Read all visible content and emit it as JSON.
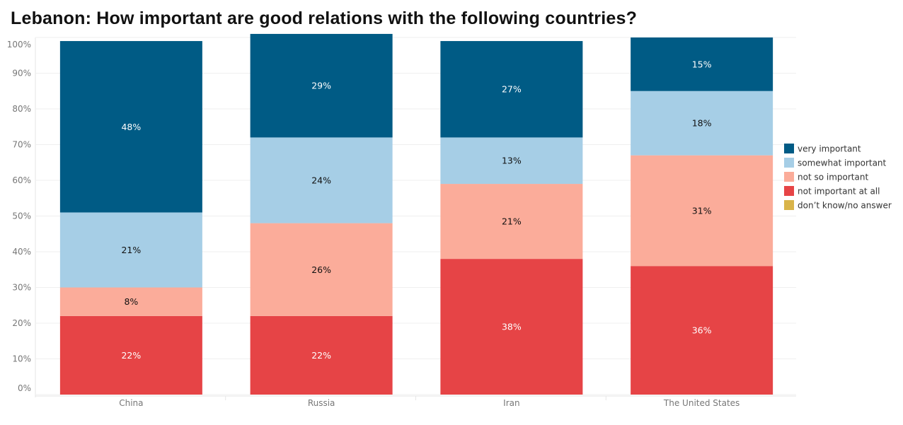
{
  "chart_data": {
    "type": "bar",
    "stacked": true,
    "title": "Lebanon: How important are good relations with the following countries?",
    "xlabel": "",
    "ylabel": "",
    "ylim": [
      0,
      100
    ],
    "y_ticks": [
      "0%",
      "10%",
      "20%",
      "30%",
      "40%",
      "50%",
      "60%",
      "70%",
      "80%",
      "90%",
      "100%"
    ],
    "grid": true,
    "legend_position": "right",
    "categories": [
      "China",
      "Russia",
      "Iran",
      "The United States"
    ],
    "series": [
      {
        "name": "not important at all",
        "color": "#E64446",
        "label_color": "#ffffff",
        "values": [
          22,
          22,
          38,
          36
        ],
        "labels": [
          "22%",
          "22%",
          "38%",
          "36%"
        ]
      },
      {
        "name": "not so important",
        "color": "#FBAC9A",
        "label_color": "#111111",
        "values": [
          8,
          26,
          21,
          31
        ],
        "labels": [
          "8%",
          "26%",
          "21%",
          "31%"
        ]
      },
      {
        "name": "somewhat important",
        "color": "#A6CEE6",
        "label_color": "#111111",
        "values": [
          21,
          24,
          13,
          18
        ],
        "labels": [
          "21%",
          "24%",
          "13%",
          "18%"
        ]
      },
      {
        "name": "very important",
        "color": "#005B85",
        "label_color": "#ffffff",
        "values": [
          48,
          29,
          27,
          15
        ],
        "labels": [
          "48%",
          "29%",
          "27%",
          "15%"
        ]
      }
    ],
    "legend": [
      {
        "name": "very important",
        "color": "#005B85"
      },
      {
        "name": "somewhat important",
        "color": "#A6CEE6"
      },
      {
        "name": "not so important",
        "color": "#FBAC9A"
      },
      {
        "name": "not important at all",
        "color": "#E64446"
      },
      {
        "name": "don’t know/no answer",
        "color": "#D9B44A"
      }
    ]
  }
}
